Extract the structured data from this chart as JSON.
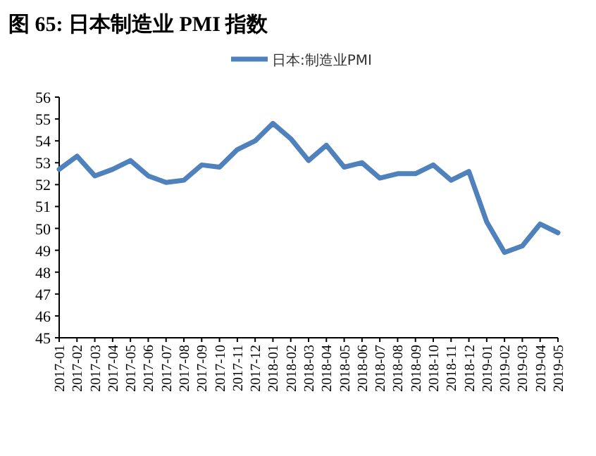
{
  "chart_data": {
    "type": "line",
    "title": "图  65:  日本制造业 PMI 指数",
    "categories": [
      "2017-01",
      "2017-02",
      "2017-03",
      "2017-04",
      "2017-05",
      "2017-06",
      "2017-07",
      "2017-08",
      "2017-09",
      "2017-10",
      "2017-11",
      "2017-12",
      "2018-01",
      "2018-02",
      "2018-03",
      "2018-04",
      "2018-05",
      "2018-06",
      "2018-07",
      "2018-08",
      "2018-09",
      "2018-10",
      "2018-11",
      "2018-12",
      "2019-01",
      "2019-02",
      "2019-03",
      "2019-04",
      "2019-05"
    ],
    "series": [
      {
        "name": "日本:制造业PMI",
        "color": "#4f81bd",
        "values": [
          52.7,
          53.3,
          52.4,
          52.7,
          53.1,
          52.4,
          52.1,
          52.2,
          52.9,
          52.8,
          53.6,
          54.0,
          54.8,
          54.1,
          53.1,
          53.8,
          52.8,
          53.0,
          52.3,
          52.5,
          52.5,
          52.9,
          52.2,
          52.6,
          50.3,
          48.9,
          49.2,
          50.2,
          49.8
        ]
      }
    ],
    "ylim": [
      45,
      56
    ],
    "yticks": [
      45,
      46,
      47,
      48,
      49,
      50,
      51,
      52,
      53,
      54,
      55,
      56
    ],
    "legend": "top",
    "grid": false
  }
}
